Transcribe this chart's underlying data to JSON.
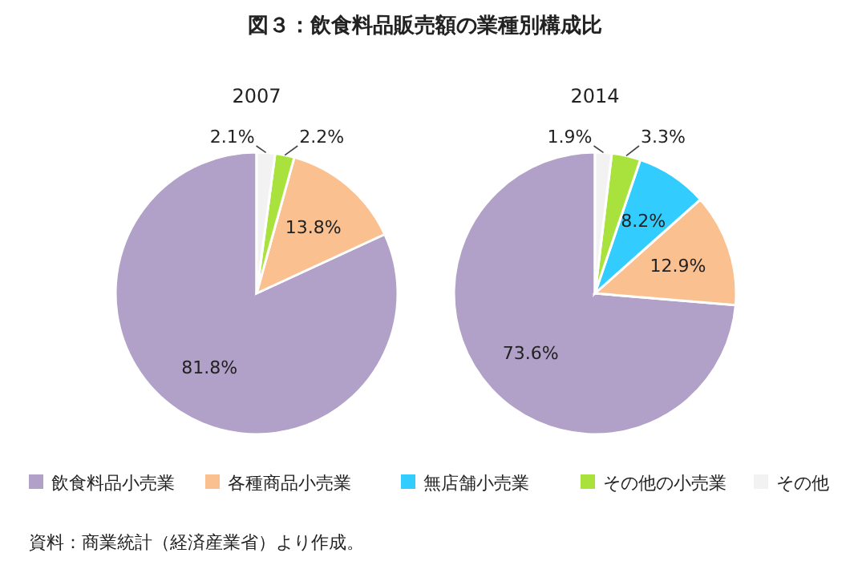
{
  "chart_data": {
    "type": "pie",
    "title": "図３：飲食料品販売額の業種別構成比",
    "categories": [
      "飲食料品小売業",
      "各種商品小売業",
      "無店舗小売業",
      "その他の小売業",
      "その他"
    ],
    "colors": [
      "#b1a0c7",
      "#fac090",
      "#33ccff",
      "#a9e23c",
      "#f2f2f2"
    ],
    "series": [
      {
        "name": "2007",
        "values": [
          81.8,
          13.8,
          0,
          2.2,
          2.1
        ],
        "value_labels": [
          "81.8%",
          "13.8%",
          null,
          "2.2%",
          "2.1%"
        ]
      },
      {
        "name": "2014",
        "values": [
          73.6,
          12.9,
          8.2,
          3.3,
          1.9
        ],
        "value_labels": [
          "73.6%",
          "12.9%",
          "8.2%",
          "3.3%",
          "1.9%"
        ]
      }
    ],
    "legend": "bottom",
    "annotations": [
      "資料：商業統計（経済産業省）より作成。"
    ]
  }
}
